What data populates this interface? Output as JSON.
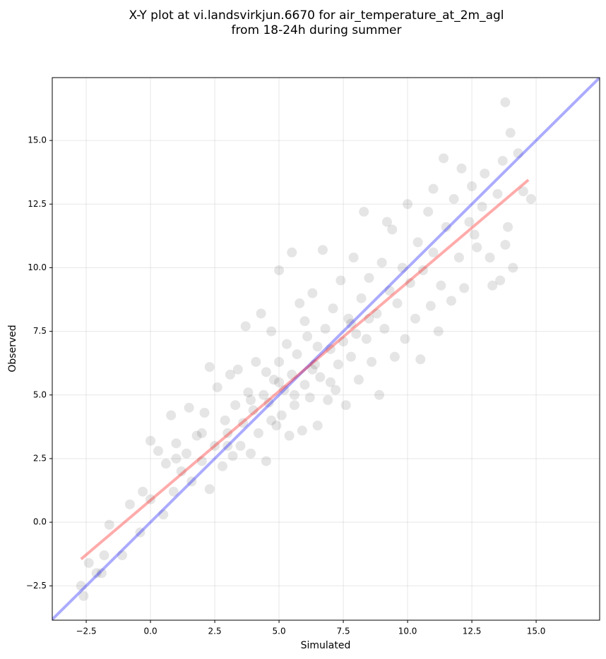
{
  "chart_data": {
    "type": "scatter",
    "title": [
      "X-Y plot at vi.landsvirkjun.6670 for air_temperature_at_2m_agl",
      "from 18-24h during summer"
    ],
    "xlabel": "Simulated",
    "ylabel": "Observed",
    "color": "#000000",
    "alpha": 0.1,
    "grid": true,
    "xlim": [
      -3.82,
      17.47
    ],
    "ylim": [
      -3.85,
      17.47
    ],
    "xticks": [
      {
        "value": -2.5,
        "label": "−2.5"
      },
      {
        "value": 0,
        "label": "0.0"
      },
      2.5,
      {
        "value": 5,
        "label": "5.0"
      },
      7.5,
      {
        "value": 10,
        "label": "10.0"
      },
      12.5,
      {
        "value": 15,
        "label": "15.0"
      }
    ],
    "yticks": [
      {
        "value": -2.5,
        "label": "−2.5"
      },
      {
        "value": 0,
        "label": "0.0"
      },
      2.5,
      {
        "value": 5,
        "label": "5.0"
      },
      7.5,
      {
        "value": 10,
        "label": "10.0"
      },
      12.5,
      {
        "value": 15,
        "label": "15.0"
      }
    ],
    "x": [
      -2.6,
      -2.7,
      -2.4,
      -2.1,
      -1.9,
      -1.6,
      -1.8,
      -1.1,
      -0.8,
      -0.4,
      -0.3,
      0.0,
      0.0,
      0.3,
      0.5,
      0.6,
      0.8,
      0.9,
      1.0,
      1.2,
      1.4,
      1.5,
      1.6,
      1.8,
      2.0,
      2.1,
      2.3,
      2.3,
      2.5,
      2.6,
      2.8,
      2.9,
      3.0,
      3.1,
      3.2,
      3.3,
      3.4,
      3.5,
      3.6,
      3.7,
      3.8,
      3.9,
      4.0,
      4.1,
      4.2,
      4.3,
      4.4,
      4.5,
      4.6,
      4.7,
      4.8,
      4.9,
      5.0,
      5.0,
      5.1,
      5.2,
      5.3,
      5.4,
      5.5,
      5.5,
      5.6,
      5.7,
      5.8,
      5.9,
      6.0,
      6.1,
      6.2,
      6.3,
      6.4,
      6.5,
      6.6,
      6.7,
      6.8,
      6.9,
      7.0,
      7.1,
      7.2,
      7.3,
      7.4,
      7.5,
      7.6,
      7.7,
      7.8,
      7.9,
      8.0,
      8.1,
      8.2,
      8.3,
      8.4,
      8.5,
      8.6,
      8.8,
      8.9,
      9.0,
      9.1,
      9.3,
      9.4,
      9.5,
      9.6,
      9.8,
      9.9,
      10.0,
      10.1,
      10.3,
      10.4,
      10.5,
      10.6,
      10.8,
      10.9,
      11.0,
      11.2,
      11.3,
      11.4,
      11.5,
      11.7,
      11.8,
      12.0,
      12.1,
      12.2,
      12.4,
      12.5,
      12.7,
      12.9,
      13.0,
      13.2,
      13.3,
      13.5,
      13.6,
      13.7,
      13.8,
      13.9,
      14.0,
      14.1,
      14.3,
      14.5,
      14.8,
      13.8,
      12.6,
      11.0,
      9.2,
      6.0,
      5.0,
      4.5,
      3.9,
      6.5,
      7.0,
      5.6,
      6.3,
      4.7,
      8.5,
      7.8,
      3.0,
      2.0,
      1.0
    ],
    "y": [
      -2.9,
      -2.5,
      -1.6,
      -2.0,
      -2.0,
      -0.1,
      -1.3,
      -1.3,
      0.7,
      -0.4,
      1.2,
      0.9,
      3.2,
      2.8,
      0.3,
      2.3,
      4.2,
      1.2,
      3.1,
      2.0,
      2.7,
      4.5,
      1.6,
      3.4,
      2.4,
      4.3,
      6.1,
      1.3,
      3.0,
      5.3,
      2.2,
      4.0,
      3.5,
      5.8,
      2.6,
      4.6,
      6.0,
      3.0,
      3.9,
      7.7,
      5.1,
      2.7,
      4.4,
      6.3,
      3.5,
      8.2,
      5.0,
      2.4,
      4.7,
      7.5,
      5.6,
      3.8,
      9.9,
      6.3,
      4.2,
      5.2,
      7.0,
      3.4,
      10.6,
      5.8,
      4.6,
      6.6,
      8.6,
      3.6,
      5.4,
      7.3,
      4.9,
      9.0,
      6.2,
      3.8,
      5.7,
      10.7,
      7.6,
      4.8,
      6.8,
      8.4,
      5.2,
      6.2,
      9.5,
      7.1,
      4.6,
      8.0,
      6.5,
      10.4,
      7.4,
      5.6,
      8.8,
      12.2,
      7.2,
      9.6,
      6.3,
      8.2,
      5.0,
      10.2,
      7.6,
      9.1,
      11.5,
      6.5,
      8.6,
      10.0,
      7.2,
      12.5,
      9.4,
      8.0,
      11.0,
      6.4,
      9.9,
      12.2,
      8.5,
      10.6,
      7.5,
      9.3,
      14.3,
      11.6,
      8.7,
      12.7,
      10.4,
      13.9,
      9.2,
      11.8,
      13.2,
      10.8,
      12.4,
      13.7,
      10.4,
      9.3,
      12.9,
      9.5,
      14.2,
      16.5,
      11.6,
      15.3,
      10.0,
      14.5,
      13.0,
      12.7,
      10.9,
      11.3,
      13.1,
      11.8,
      7.9,
      5.5,
      5.9,
      4.8,
      6.9,
      5.5,
      5.0,
      6.0,
      4.0,
      8.0,
      7.8,
      3.0,
      3.5,
      2.5
    ],
    "lines": [
      {
        "color": "#0000ff",
        "x": [
          -3.82,
          17.47
        ],
        "y": [
          -3.82,
          17.47
        ]
      },
      {
        "color": "#ff0000",
        "x": [
          -2.7,
          14.7
        ],
        "y": [
          -1.45,
          13.45
        ]
      }
    ]
  }
}
